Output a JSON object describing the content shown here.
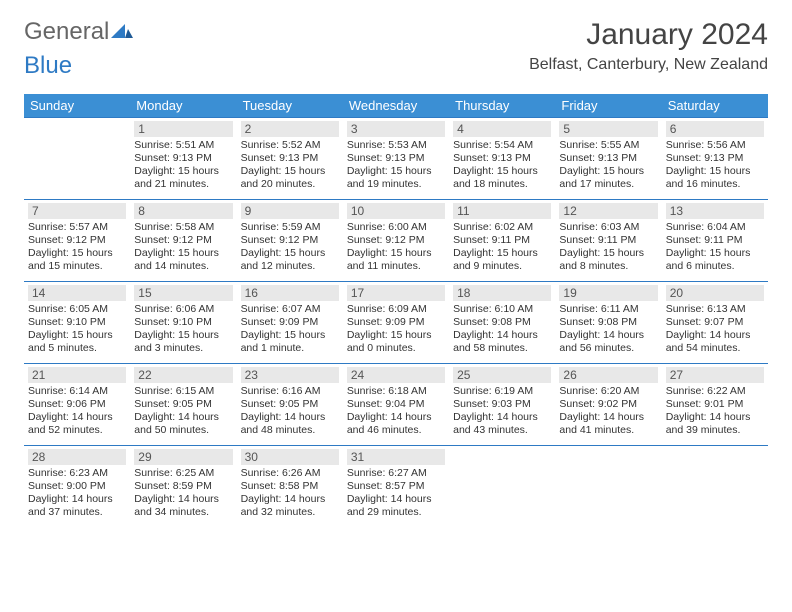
{
  "logo": {
    "text_a": "General",
    "text_b": "Blue"
  },
  "title": "January 2024",
  "location": "Belfast, Canterbury, New Zealand",
  "colors": {
    "header_bg": "#3b8fd4",
    "row_border": "#2e7ac4",
    "daynum_bg": "#e8e8e8",
    "text": "#333333"
  },
  "day_headers": [
    "Sunday",
    "Monday",
    "Tuesday",
    "Wednesday",
    "Thursday",
    "Friday",
    "Saturday"
  ],
  "first_day_index": 1,
  "days": [
    {
      "n": 1,
      "sunrise": "5:51 AM",
      "sunset": "9:13 PM",
      "daylight": "15 hours and 21 minutes."
    },
    {
      "n": 2,
      "sunrise": "5:52 AM",
      "sunset": "9:13 PM",
      "daylight": "15 hours and 20 minutes."
    },
    {
      "n": 3,
      "sunrise": "5:53 AM",
      "sunset": "9:13 PM",
      "daylight": "15 hours and 19 minutes."
    },
    {
      "n": 4,
      "sunrise": "5:54 AM",
      "sunset": "9:13 PM",
      "daylight": "15 hours and 18 minutes."
    },
    {
      "n": 5,
      "sunrise": "5:55 AM",
      "sunset": "9:13 PM",
      "daylight": "15 hours and 17 minutes."
    },
    {
      "n": 6,
      "sunrise": "5:56 AM",
      "sunset": "9:13 PM",
      "daylight": "15 hours and 16 minutes."
    },
    {
      "n": 7,
      "sunrise": "5:57 AM",
      "sunset": "9:12 PM",
      "daylight": "15 hours and 15 minutes."
    },
    {
      "n": 8,
      "sunrise": "5:58 AM",
      "sunset": "9:12 PM",
      "daylight": "15 hours and 14 minutes."
    },
    {
      "n": 9,
      "sunrise": "5:59 AM",
      "sunset": "9:12 PM",
      "daylight": "15 hours and 12 minutes."
    },
    {
      "n": 10,
      "sunrise": "6:00 AM",
      "sunset": "9:12 PM",
      "daylight": "15 hours and 11 minutes."
    },
    {
      "n": 11,
      "sunrise": "6:02 AM",
      "sunset": "9:11 PM",
      "daylight": "15 hours and 9 minutes."
    },
    {
      "n": 12,
      "sunrise": "6:03 AM",
      "sunset": "9:11 PM",
      "daylight": "15 hours and 8 minutes."
    },
    {
      "n": 13,
      "sunrise": "6:04 AM",
      "sunset": "9:11 PM",
      "daylight": "15 hours and 6 minutes."
    },
    {
      "n": 14,
      "sunrise": "6:05 AM",
      "sunset": "9:10 PM",
      "daylight": "15 hours and 5 minutes."
    },
    {
      "n": 15,
      "sunrise": "6:06 AM",
      "sunset": "9:10 PM",
      "daylight": "15 hours and 3 minutes."
    },
    {
      "n": 16,
      "sunrise": "6:07 AM",
      "sunset": "9:09 PM",
      "daylight": "15 hours and 1 minute."
    },
    {
      "n": 17,
      "sunrise": "6:09 AM",
      "sunset": "9:09 PM",
      "daylight": "15 hours and 0 minutes."
    },
    {
      "n": 18,
      "sunrise": "6:10 AM",
      "sunset": "9:08 PM",
      "daylight": "14 hours and 58 minutes."
    },
    {
      "n": 19,
      "sunrise": "6:11 AM",
      "sunset": "9:08 PM",
      "daylight": "14 hours and 56 minutes."
    },
    {
      "n": 20,
      "sunrise": "6:13 AM",
      "sunset": "9:07 PM",
      "daylight": "14 hours and 54 minutes."
    },
    {
      "n": 21,
      "sunrise": "6:14 AM",
      "sunset": "9:06 PM",
      "daylight": "14 hours and 52 minutes."
    },
    {
      "n": 22,
      "sunrise": "6:15 AM",
      "sunset": "9:05 PM",
      "daylight": "14 hours and 50 minutes."
    },
    {
      "n": 23,
      "sunrise": "6:16 AM",
      "sunset": "9:05 PM",
      "daylight": "14 hours and 48 minutes."
    },
    {
      "n": 24,
      "sunrise": "6:18 AM",
      "sunset": "9:04 PM",
      "daylight": "14 hours and 46 minutes."
    },
    {
      "n": 25,
      "sunrise": "6:19 AM",
      "sunset": "9:03 PM",
      "daylight": "14 hours and 43 minutes."
    },
    {
      "n": 26,
      "sunrise": "6:20 AM",
      "sunset": "9:02 PM",
      "daylight": "14 hours and 41 minutes."
    },
    {
      "n": 27,
      "sunrise": "6:22 AM",
      "sunset": "9:01 PM",
      "daylight": "14 hours and 39 minutes."
    },
    {
      "n": 28,
      "sunrise": "6:23 AM",
      "sunset": "9:00 PM",
      "daylight": "14 hours and 37 minutes."
    },
    {
      "n": 29,
      "sunrise": "6:25 AM",
      "sunset": "8:59 PM",
      "daylight": "14 hours and 34 minutes."
    },
    {
      "n": 30,
      "sunrise": "6:26 AM",
      "sunset": "8:58 PM",
      "daylight": "14 hours and 32 minutes."
    },
    {
      "n": 31,
      "sunrise": "6:27 AM",
      "sunset": "8:57 PM",
      "daylight": "14 hours and 29 minutes."
    }
  ],
  "labels": {
    "sunrise": "Sunrise:",
    "sunset": "Sunset:",
    "daylight": "Daylight:"
  }
}
